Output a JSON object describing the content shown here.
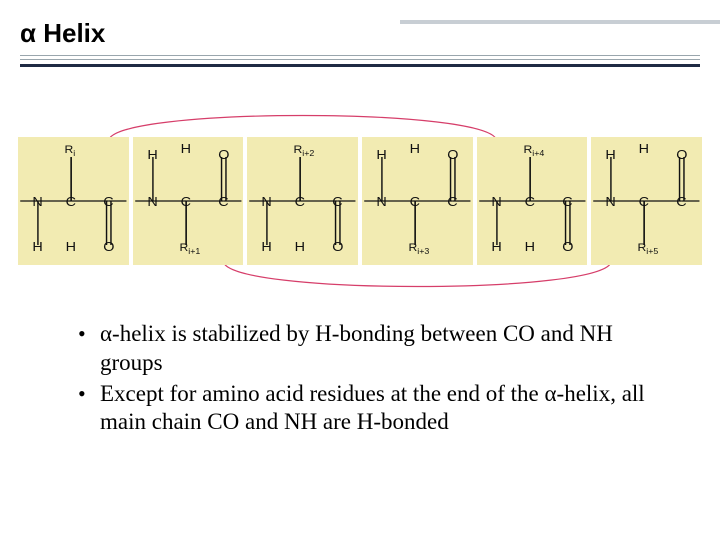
{
  "slide": {
    "title": "α Helix",
    "rule_colors": {
      "thin": "#9aa6ad",
      "thick": "#1f2a44"
    },
    "side_accent_color": "#c8ced4"
  },
  "diagram": {
    "residue_bg": "#f2ebb2",
    "bond_color": "#111111",
    "hbond_color": "#d63e6a",
    "atom_font_size": 13,
    "residues": [
      {
        "r_label": "R",
        "r_sub": "i",
        "carbonyl_up": false
      },
      {
        "r_label": "R",
        "r_sub": "i+1",
        "carbonyl_up": true
      },
      {
        "r_label": "R",
        "r_sub": "i+2",
        "carbonyl_up": false
      },
      {
        "r_label": "R",
        "r_sub": "i+3",
        "carbonyl_up": true
      },
      {
        "r_label": "R",
        "r_sub": "i+4",
        "carbonyl_up": false
      },
      {
        "r_label": "R",
        "r_sub": "i+5",
        "carbonyl_up": true
      }
    ],
    "hbond_arcs": [
      {
        "from_residue": 0,
        "to_residue": 4,
        "side": "top"
      },
      {
        "from_residue": 1,
        "to_residue": 5,
        "side": "bottom"
      }
    ]
  },
  "bullets": [
    "α-helix is stabilized by H-bonding between CO and NH groups",
    "Except for amino acid residues at the end of the α-helix, all main chain CO and NH are H-bonded"
  ],
  "colors": {
    "page_bg": "#ffffff",
    "text": "#000000"
  }
}
